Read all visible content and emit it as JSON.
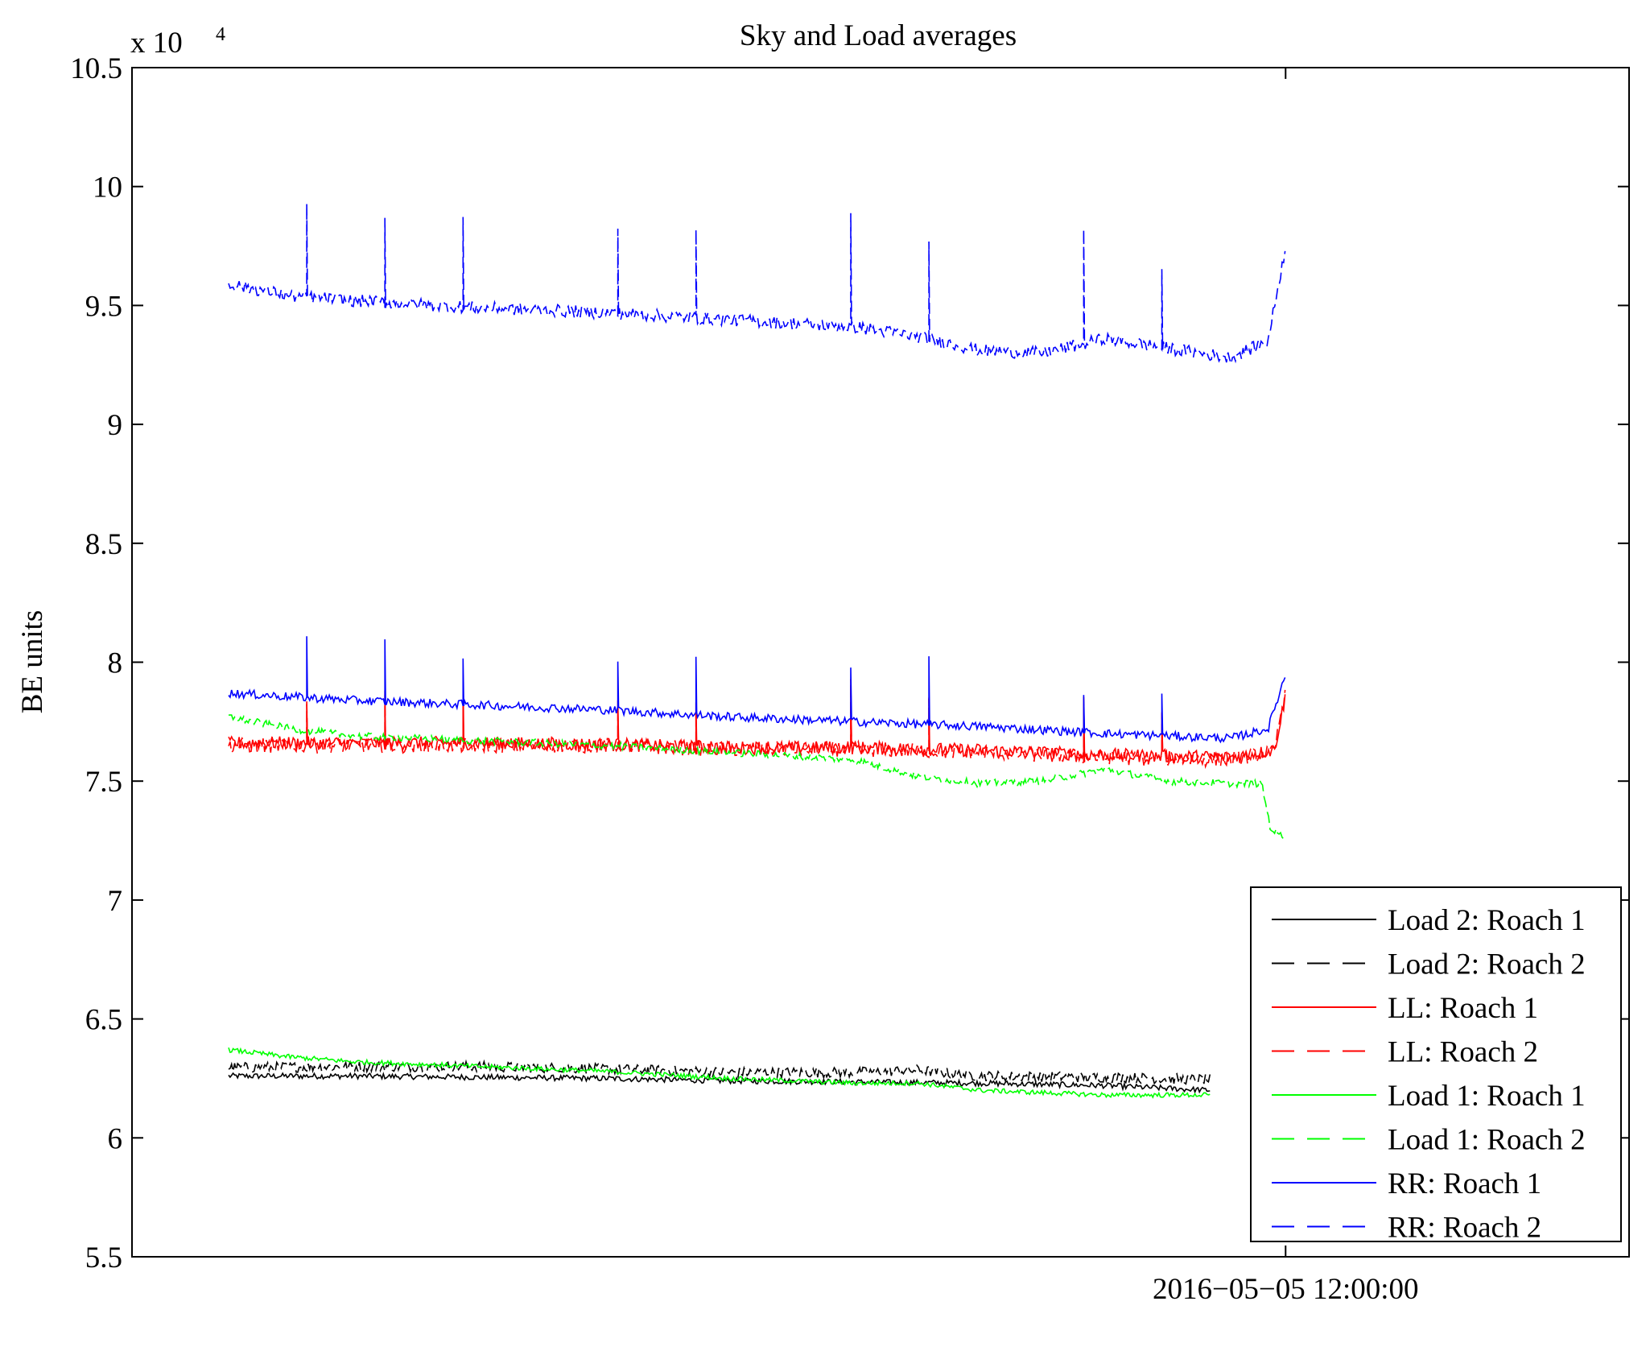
{
  "chart_data": {
    "type": "line",
    "title": "Sky and Load averages",
    "xlabel": "",
    "ylabel": "BE units",
    "y_multiplier": {
      "base": "x 10",
      "exponent": "4"
    },
    "ylim": [
      55000,
      105000
    ],
    "yticks": [
      55000,
      60000,
      65000,
      70000,
      75000,
      80000,
      85000,
      90000,
      95000,
      100000,
      105000
    ],
    "ytick_labels": [
      "5.5",
      "6",
      "6.5",
      "7",
      "7.5",
      "8",
      "8.5",
      "9",
      "9.5",
      "10",
      "10.5"
    ],
    "xlim": [
      0,
      100
    ],
    "xtick_positions": [
      84.4
    ],
    "xtick_labels": [
      "2016−05−05 12:00:00"
    ],
    "grid": false,
    "legend_position": "bottom-right",
    "series": [
      {
        "name": "Load 2: Roach 1",
        "color": "#000000",
        "dash": "solid",
        "x": [
          0,
          10,
          20,
          30,
          40,
          50,
          60,
          70,
          78.4
        ],
        "values": [
          62600,
          62600,
          62550,
          62500,
          62400,
          62350,
          62300,
          62200,
          62000
        ],
        "noise": 120,
        "spike_every": 0
      },
      {
        "name": "Load 2: Roach 2",
        "color": "#000000",
        "dash": "dash",
        "x": [
          0,
          10,
          20,
          30,
          40,
          50,
          55,
          60,
          70,
          78.4
        ],
        "values": [
          62950,
          63000,
          63000,
          62900,
          62750,
          62750,
          62850,
          62600,
          62550,
          62450
        ],
        "noise": 220,
        "spike_every": 0
      },
      {
        "name": "LL: Roach 1",
        "color": "#ff0000",
        "dash": "solid",
        "x": [
          0,
          10,
          20,
          30,
          40,
          50,
          60,
          70,
          80,
          83.5,
          84.4
        ],
        "values": [
          76600,
          76600,
          76600,
          76550,
          76400,
          76400,
          76300,
          76100,
          76000,
          76300,
          78600
        ],
        "noise": 280,
        "spike_every": 6.2
      },
      {
        "name": "LL: Roach 2",
        "color": "#ff0000",
        "dash": "dash",
        "x": [
          0,
          10,
          20,
          30,
          40,
          50,
          60,
          70,
          80,
          83.5,
          84.4
        ],
        "values": [
          76500,
          76500,
          76500,
          76500,
          76350,
          76350,
          76200,
          76000,
          75900,
          76200,
          79000
        ],
        "noise": 320,
        "spike_every": 6.2
      },
      {
        "name": "Load 1: Roach 1",
        "color": "#00ff00",
        "dash": "solid",
        "x": [
          0,
          5,
          10,
          20,
          30,
          40,
          50,
          55,
          60,
          70,
          78.4
        ],
        "values": [
          63700,
          63400,
          63200,
          63000,
          62800,
          62500,
          62300,
          62300,
          62000,
          61800,
          61800
        ],
        "noise": 100,
        "spike_every": 0
      },
      {
        "name": "Load 1: Roach 2",
        "color": "#00ff00",
        "dash": "dash",
        "x": [
          0,
          5,
          10,
          20,
          30,
          40,
          50,
          55,
          60,
          65,
          70,
          75,
          80,
          82.5,
          83.2,
          84.4
        ],
        "values": [
          77700,
          77200,
          76900,
          76700,
          76500,
          76200,
          75900,
          75200,
          74900,
          75000,
          75500,
          75000,
          74900,
          74900,
          73000,
          72600
        ],
        "noise": 150,
        "spike_every": 0
      },
      {
        "name": "RR: Roach 1",
        "color": "#0000ff",
        "dash": "solid",
        "x": [
          0,
          10,
          20,
          30,
          40,
          50,
          60,
          70,
          80,
          83,
          84.4
        ],
        "values": [
          78700,
          78400,
          78200,
          78000,
          77700,
          77500,
          77300,
          77000,
          76800,
          77200,
          79500
        ],
        "noise": 180,
        "spike_every": 6.2
      },
      {
        "name": "RR: Roach 2",
        "color": "#0000ff",
        "dash": "dash",
        "x": [
          0,
          5,
          10,
          20,
          30,
          40,
          50,
          55,
          60,
          65,
          70,
          75,
          80,
          83,
          84.4
        ],
        "values": [
          95900,
          95400,
          95200,
          94900,
          94700,
          94400,
          94100,
          93700,
          93100,
          93000,
          93600,
          93200,
          92800,
          93500,
          97500
        ],
        "noise": 260,
        "spike_every": 6.2
      }
    ]
  }
}
